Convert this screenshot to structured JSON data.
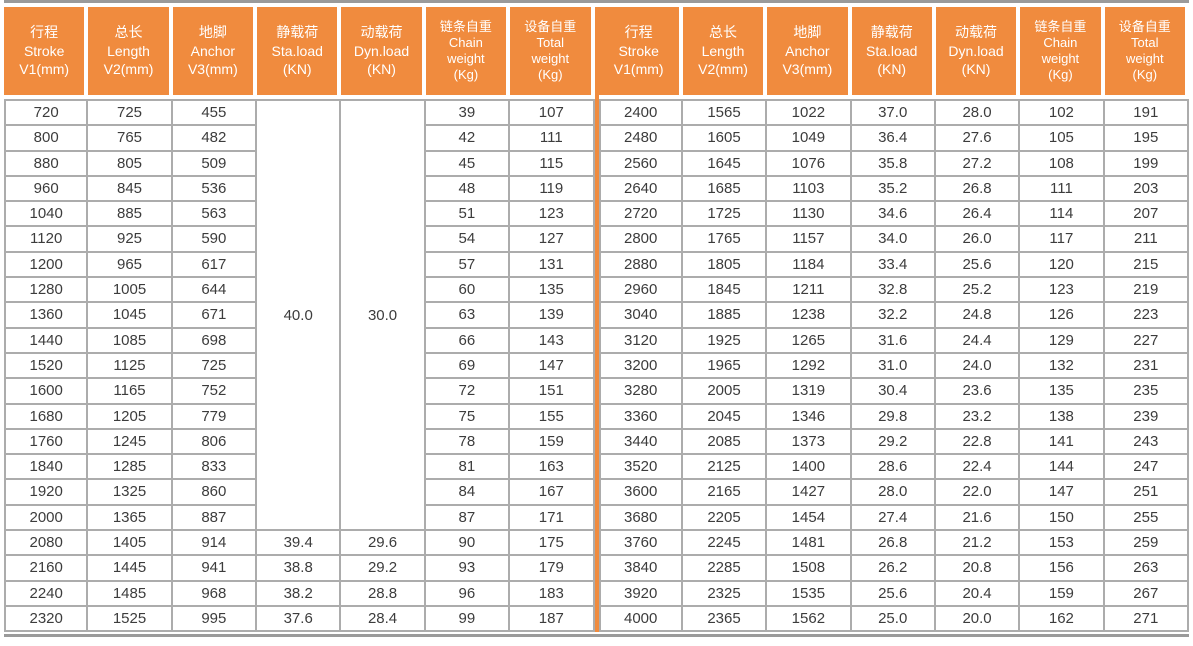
{
  "colors": {
    "header_bg": "#F08B3E",
    "header_text": "#FFFFFF",
    "divider": "#F08B3E",
    "grid_line": "#ACACAC",
    "outer_rule": "#9A9A9A",
    "body_text": "#3C3C3C"
  },
  "chart_data": {
    "type": "table",
    "layout": "two mirrored halves side by side, orange vertical divider between halves, merged Sta.load/Dyn.load cells spanning rows 1-17 of left half",
    "column_headers": [
      {
        "key": "stroke",
        "lines": [
          "行程",
          "Stroke",
          "V1(mm)"
        ]
      },
      {
        "key": "length",
        "lines": [
          "总长",
          "Length",
          "V2(mm)"
        ]
      },
      {
        "key": "anchor",
        "lines": [
          "地脚",
          "Anchor",
          "V3(mm)"
        ]
      },
      {
        "key": "sta-load",
        "lines": [
          "静载荷",
          "Sta.load",
          "(KN)"
        ]
      },
      {
        "key": "dyn-load",
        "lines": [
          "动载荷",
          "Dyn.load",
          "(KN)"
        ]
      },
      {
        "key": "chain-weight",
        "lines": [
          "链条自重",
          "Chain",
          "weight",
          "(Kg)"
        ]
      },
      {
        "key": "total-weight",
        "lines": [
          "设备自重",
          "Total",
          "weight",
          "(Kg)"
        ]
      }
    ],
    "left_merged": {
      "sta_load": "40.0",
      "dyn_load": "30.0",
      "rowspan": 17
    },
    "left_rows": [
      [
        "720",
        "725",
        "455",
        null,
        null,
        "39",
        "107"
      ],
      [
        "800",
        "765",
        "482",
        null,
        null,
        "42",
        "111"
      ],
      [
        "880",
        "805",
        "509",
        null,
        null,
        "45",
        "115"
      ],
      [
        "960",
        "845",
        "536",
        null,
        null,
        "48",
        "119"
      ],
      [
        "1040",
        "885",
        "563",
        null,
        null,
        "51",
        "123"
      ],
      [
        "1120",
        "925",
        "590",
        null,
        null,
        "54",
        "127"
      ],
      [
        "1200",
        "965",
        "617",
        null,
        null,
        "57",
        "131"
      ],
      [
        "1280",
        "1005",
        "644",
        null,
        null,
        "60",
        "135"
      ],
      [
        "1360",
        "1045",
        "671",
        null,
        null,
        "63",
        "139"
      ],
      [
        "1440",
        "1085",
        "698",
        null,
        null,
        "66",
        "143"
      ],
      [
        "1520",
        "1125",
        "725",
        null,
        null,
        "69",
        "147"
      ],
      [
        "1600",
        "1165",
        "752",
        null,
        null,
        "72",
        "151"
      ],
      [
        "1680",
        "1205",
        "779",
        null,
        null,
        "75",
        "155"
      ],
      [
        "1760",
        "1245",
        "806",
        null,
        null,
        "78",
        "159"
      ],
      [
        "1840",
        "1285",
        "833",
        null,
        null,
        "81",
        "163"
      ],
      [
        "1920",
        "1325",
        "860",
        null,
        null,
        "84",
        "167"
      ],
      [
        "2000",
        "1365",
        "887",
        null,
        null,
        "87",
        "171"
      ],
      [
        "2080",
        "1405",
        "914",
        "39.4",
        "29.6",
        "90",
        "175"
      ],
      [
        "2160",
        "1445",
        "941",
        "38.8",
        "29.2",
        "93",
        "179"
      ],
      [
        "2240",
        "1485",
        "968",
        "38.2",
        "28.8",
        "96",
        "183"
      ],
      [
        "2320",
        "1525",
        "995",
        "37.6",
        "28.4",
        "99",
        "187"
      ]
    ],
    "right_rows": [
      [
        "2400",
        "1565",
        "1022",
        "37.0",
        "28.0",
        "102",
        "191"
      ],
      [
        "2480",
        "1605",
        "1049",
        "36.4",
        "27.6",
        "105",
        "195"
      ],
      [
        "2560",
        "1645",
        "1076",
        "35.8",
        "27.2",
        "108",
        "199"
      ],
      [
        "2640",
        "1685",
        "1103",
        "35.2",
        "26.8",
        "111",
        "203"
      ],
      [
        "2720",
        "1725",
        "1130",
        "34.6",
        "26.4",
        "114",
        "207"
      ],
      [
        "2800",
        "1765",
        "1157",
        "34.0",
        "26.0",
        "117",
        "211"
      ],
      [
        "2880",
        "1805",
        "1184",
        "33.4",
        "25.6",
        "120",
        "215"
      ],
      [
        "2960",
        "1845",
        "1211",
        "32.8",
        "25.2",
        "123",
        "219"
      ],
      [
        "3040",
        "1885",
        "1238",
        "32.2",
        "24.8",
        "126",
        "223"
      ],
      [
        "3120",
        "1925",
        "1265",
        "31.6",
        "24.4",
        "129",
        "227"
      ],
      [
        "3200",
        "1965",
        "1292",
        "31.0",
        "24.0",
        "132",
        "231"
      ],
      [
        "3280",
        "2005",
        "1319",
        "30.4",
        "23.6",
        "135",
        "235"
      ],
      [
        "3360",
        "2045",
        "1346",
        "29.8",
        "23.2",
        "138",
        "239"
      ],
      [
        "3440",
        "2085",
        "1373",
        "29.2",
        "22.8",
        "141",
        "243"
      ],
      [
        "3520",
        "2125",
        "1400",
        "28.6",
        "22.4",
        "144",
        "247"
      ],
      [
        "3600",
        "2165",
        "1427",
        "28.0",
        "22.0",
        "147",
        "251"
      ],
      [
        "3680",
        "2205",
        "1454",
        "27.4",
        "21.6",
        "150",
        "255"
      ],
      [
        "3760",
        "2245",
        "1481",
        "26.8",
        "21.2",
        "153",
        "259"
      ],
      [
        "3840",
        "2285",
        "1508",
        "26.2",
        "20.8",
        "156",
        "263"
      ],
      [
        "3920",
        "2325",
        "1535",
        "25.6",
        "20.4",
        "159",
        "267"
      ],
      [
        "4000",
        "2365",
        "1562",
        "25.0",
        "20.0",
        "162",
        "271"
      ]
    ]
  }
}
